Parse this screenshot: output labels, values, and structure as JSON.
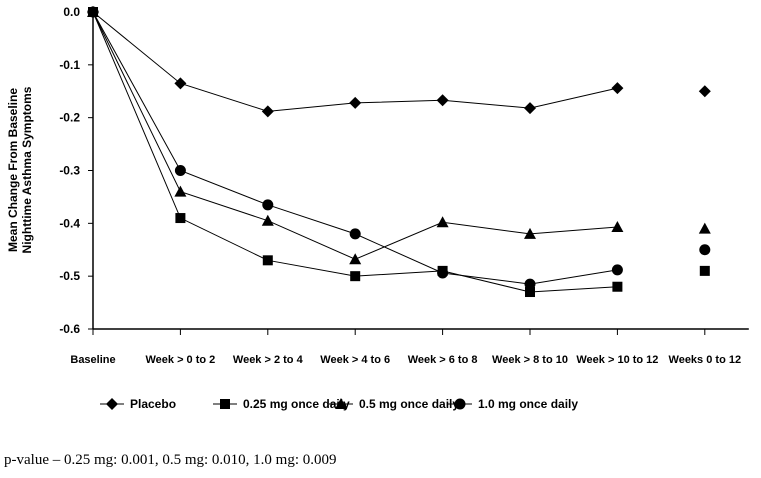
{
  "chart_data": {
    "type": "line",
    "title": "",
    "xlabel": "",
    "ylabel_lines": [
      "Mean Change From Baseline",
      "Nighttime Asthma Symptoms"
    ],
    "ylim": [
      -0.6,
      0.0
    ],
    "yticks": [
      0.0,
      -0.1,
      -0.2,
      -0.3,
      -0.4,
      -0.5,
      -0.6
    ],
    "ytick_labels": [
      "0.0",
      "-0.1",
      "-0.2",
      "-0.3",
      "-0.4",
      "-0.5",
      "-0.6"
    ],
    "categories": [
      "Baseline",
      "Week > 0 to 2",
      "Week > 2 to 4",
      "Week > 4 to 6",
      "Week > 6 to 8",
      "Week > 8 to 10",
      "Week > 10 to 12",
      "Weeks 0 to 12"
    ],
    "connected_points": 7,
    "legend_position": "bottom",
    "series": [
      {
        "name": "Placebo",
        "marker": "diamond",
        "values": [
          0.0,
          -0.135,
          -0.188,
          -0.172,
          -0.167,
          -0.182,
          -0.144,
          -0.15
        ]
      },
      {
        "name": "0.25 mg once daily",
        "marker": "square",
        "values": [
          0.0,
          -0.39,
          -0.47,
          -0.5,
          -0.49,
          -0.53,
          -0.52,
          -0.49
        ]
      },
      {
        "name": "0.5 mg once daily",
        "marker": "triangle",
        "values": [
          0.0,
          -0.34,
          -0.395,
          -0.468,
          -0.398,
          -0.42,
          -0.407,
          -0.41
        ]
      },
      {
        "name": "1.0 mg once daily",
        "marker": "circle",
        "values": [
          0.0,
          -0.3,
          -0.365,
          -0.42,
          -0.494,
          -0.515,
          -0.488,
          -0.45
        ]
      }
    ]
  },
  "footnote": "p-value – 0.25 mg: 0.001, 0.5 mg: 0.010, 1.0 mg: 0.009"
}
